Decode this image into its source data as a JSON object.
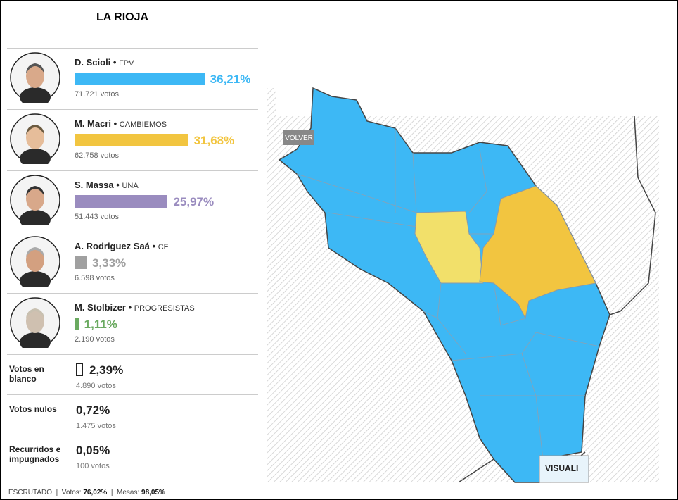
{
  "header": {
    "title": "LA RIOJA"
  },
  "candidates": [
    {
      "name": "D. Scioli",
      "party": "FPV",
      "percent": 36.21,
      "percent_label": "36,21%",
      "votes": "71.721 votos",
      "color": "#3db8f5"
    },
    {
      "name": "M. Macri",
      "party": "CAMBIEMOS",
      "percent": 31.68,
      "percent_label": "31,68%",
      "votes": "62.758 votos",
      "color": "#f2c540"
    },
    {
      "name": "S. Massa",
      "party": "UNA",
      "percent": 25.97,
      "percent_label": "25,97%",
      "votes": "51.443 votos",
      "color": "#9a8cbf"
    },
    {
      "name": "A. Rodriguez Saá",
      "party": "CF",
      "percent": 3.33,
      "percent_label": "3,33%",
      "votes": "6.598 votos",
      "color": "#a0a0a0"
    },
    {
      "name": "M. Stolbizer",
      "party": "PROGRESISTAS",
      "percent": 1.11,
      "percent_label": "1,11%",
      "votes": "2.190 votos",
      "color": "#6aaa60"
    }
  ],
  "others": [
    {
      "label": "Votos en blanco",
      "percent": "2,39%",
      "votes": "4.890 votos"
    },
    {
      "label": "Votos nulos",
      "percent": "0,72%",
      "votes": "1.475 votos"
    },
    {
      "label": "Recurridos e impugnados",
      "percent": "0,05%",
      "votes": "100 votos"
    }
  ],
  "footer": {
    "label": "ESCRUTADO",
    "votes_label": "Votos:",
    "votes": "76,02%",
    "tables_label": "Mesas:",
    "tables": "98,05%"
  },
  "map": {
    "back_button": "VOLVER",
    "view_button": "VISUALI"
  }
}
